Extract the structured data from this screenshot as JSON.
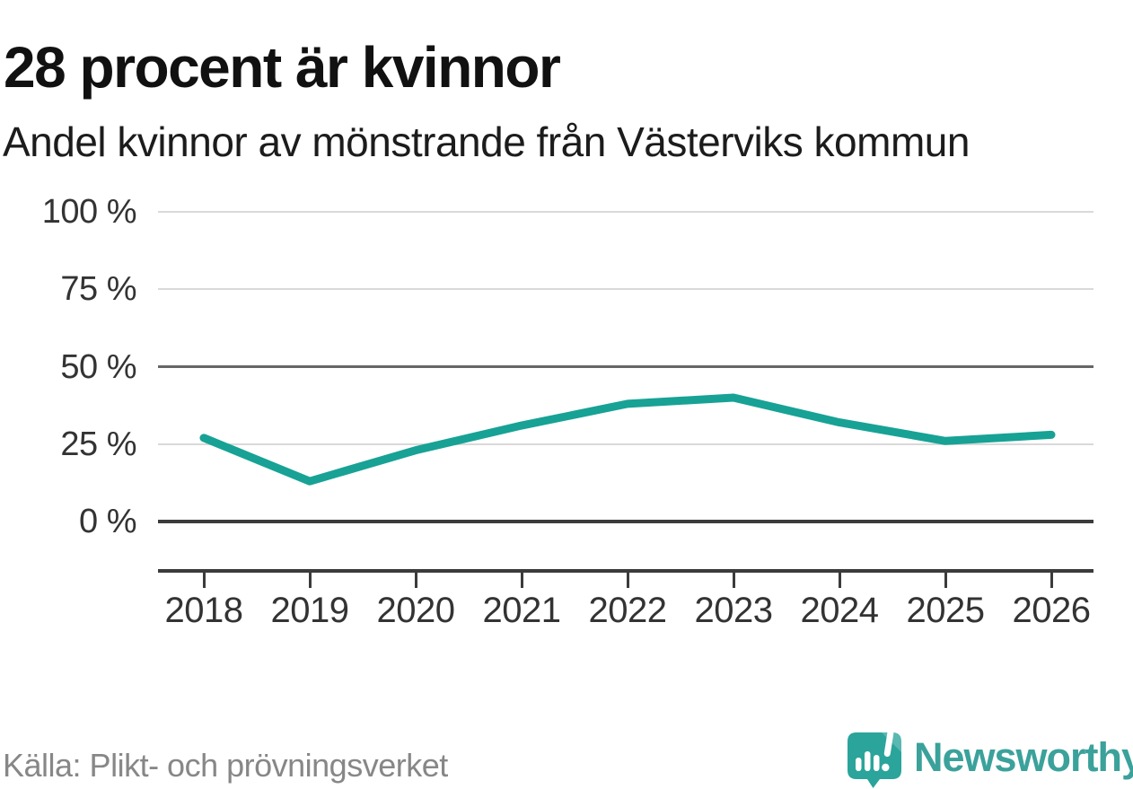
{
  "chart_data": {
    "type": "line",
    "title": "28 procent är kvinnor",
    "subtitle": "Andel kvinnor av mönstrande från Västerviks kommun",
    "categories": [
      "2018",
      "2019",
      "2020",
      "2021",
      "2022",
      "2023",
      "2024",
      "2025",
      "2026"
    ],
    "series": [
      {
        "name": "Andel kvinnor av mönstrande",
        "values": [
          27,
          13,
          23,
          31,
          38,
          40,
          32,
          26,
          28
        ],
        "color": "#17a295"
      }
    ],
    "xlabel": "",
    "ylabel": "",
    "ylim": [
      0,
      100
    ],
    "yticks": [
      {
        "value": 100,
        "label": "100 %"
      },
      {
        "value": 75,
        "label": "75 %"
      },
      {
        "value": 50,
        "label": "50 %"
      },
      {
        "value": 25,
        "label": "25 %"
      },
      {
        "value": 0,
        "label": "0 %"
      }
    ],
    "grid": "horizontal",
    "legend": "none",
    "source": "Källa: Plikt- och prövningsverket"
  },
  "footer": {
    "logo_text": "Newsworthy"
  },
  "colors": {
    "line": "#17a295",
    "grid_light": "#d9d9d9",
    "grid_mid": "#666666",
    "axis_dark": "#3b3b3b",
    "tick_text": "#333333",
    "title_text": "#111111",
    "source_text": "#878787",
    "logo_teal": "#2ba49b",
    "logo_text_teal": "#3ba19b"
  }
}
